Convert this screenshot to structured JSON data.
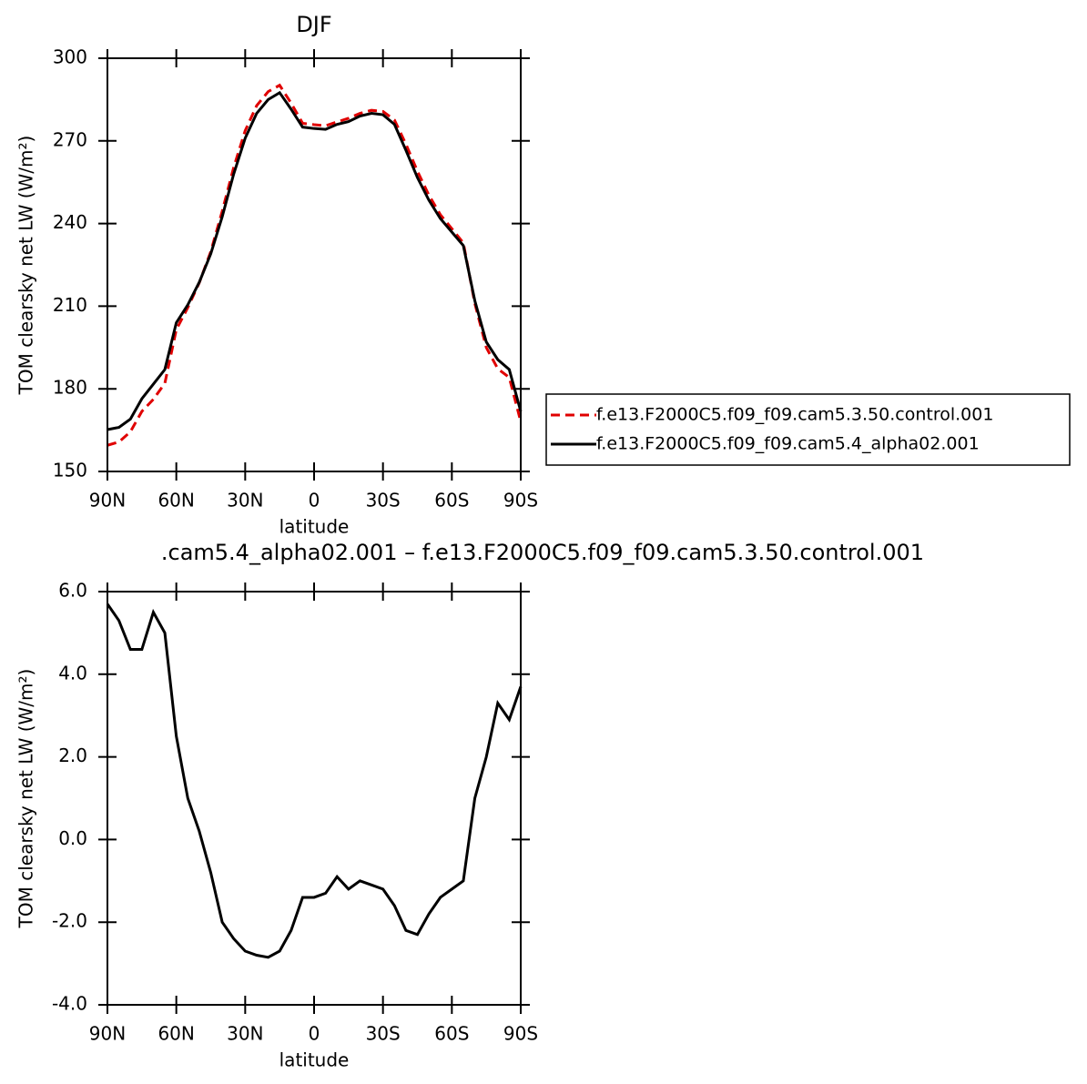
{
  "chart_data": [
    {
      "type": "line",
      "title": "DJF",
      "xlabel": "latitude",
      "ylabel": "TOM clearsky net LW (W/m²)",
      "x": [
        90,
        85,
        80,
        75,
        70,
        65,
        60,
        55,
        50,
        45,
        40,
        35,
        30,
        25,
        20,
        15,
        10,
        5,
        0,
        -5,
        -10,
        -15,
        -20,
        -25,
        -30,
        -35,
        -40,
        -45,
        -50,
        -55,
        -60,
        -65,
        -70,
        -75,
        -80,
        -85,
        -90
      ],
      "xlim": [
        90,
        -90
      ],
      "xticks": [
        {
          "value": 90,
          "label": "90N"
        },
        {
          "value": 60,
          "label": "60N"
        },
        {
          "value": 30,
          "label": "30N"
        },
        0,
        {
          "value": -30,
          "label": "30S"
        },
        {
          "value": -60,
          "label": "60S"
        },
        {
          "value": -90,
          "label": "90S"
        }
      ],
      "ylim": [
        150,
        300
      ],
      "yticks": [
        150,
        180,
        210,
        240,
        270,
        300
      ],
      "legend": "right",
      "series": [
        {
          "name": "f.e13.F2000C5.f09_f09.cam5.3.50.control.001",
          "color": "#e00000",
          "linestyle": "dashed",
          "values": [
            159.5,
            160.7,
            164.4,
            171.8,
            176.2,
            182,
            201.5,
            209.5,
            218.5,
            229.8,
            244.5,
            260.4,
            273.7,
            282.8,
            287.9,
            290.2,
            283.7,
            276.4,
            275.9,
            275.5,
            276.9,
            278.2,
            280,
            281.1,
            280.7,
            277.6,
            268.8,
            259,
            250.3,
            243.2,
            238.1,
            233,
            211,
            195,
            187.3,
            184.1,
            168.1
          ]
        },
        {
          "name": "f.e13.F2000C5.f09_f09.cam5.4_alpha02.001",
          "color": "#000000",
          "linestyle": "solid",
          "values": [
            165.2,
            166,
            169,
            176.4,
            181.7,
            187,
            204,
            210.5,
            218.7,
            229,
            242.5,
            258,
            271,
            280,
            285,
            287.5,
            281.5,
            275,
            274.5,
            274.2,
            276,
            277,
            279,
            280,
            279.5,
            276,
            266.6,
            256.7,
            248.5,
            241.8,
            236.9,
            232,
            212,
            197,
            190.6,
            187,
            171.8
          ]
        }
      ]
    },
    {
      "type": "line",
      "title": ".cam5.4_alpha02.001 – f.e13.F2000C5.f09_f09.cam5.3.50.control.001",
      "xlabel": "latitude",
      "ylabel": "TOM clearsky net LW (W/m²)",
      "x": [
        90,
        85,
        80,
        75,
        70,
        65,
        60,
        55,
        50,
        45,
        40,
        35,
        30,
        25,
        20,
        15,
        10,
        5,
        0,
        -5,
        -10,
        -15,
        -20,
        -25,
        -30,
        -35,
        -40,
        -45,
        -50,
        -55,
        -60,
        -65,
        -70,
        -75,
        -80,
        -85,
        -90
      ],
      "xlim": [
        90,
        -90
      ],
      "xticks": [
        {
          "value": 90,
          "label": "90N"
        },
        {
          "value": 60,
          "label": "60N"
        },
        {
          "value": 30,
          "label": "30N"
        },
        0,
        {
          "value": -30,
          "label": "30S"
        },
        {
          "value": -60,
          "label": "60S"
        },
        {
          "value": -90,
          "label": "90S"
        }
      ],
      "ylim": [
        -4,
        6
      ],
      "yticks": [
        {
          "value": -4,
          "label": "-4.0"
        },
        {
          "value": -2,
          "label": "-2.0"
        },
        {
          "value": 0,
          "label": "0.0"
        },
        {
          "value": 2,
          "label": "2.0"
        },
        {
          "value": 4,
          "label": "4.0"
        },
        {
          "value": 6,
          "label": "6.0"
        }
      ],
      "series": [
        {
          "color": "#000000",
          "linestyle": "solid",
          "values": [
            5.7,
            5.3,
            4.6,
            4.6,
            5.5,
            5.0,
            2.5,
            1.0,
            0.2,
            -0.8,
            -2.0,
            -2.4,
            -2.7,
            -2.8,
            -2.85,
            -2.7,
            -2.2,
            -1.4,
            -1.4,
            -1.3,
            -0.9,
            -1.2,
            -1.0,
            -1.1,
            -1.2,
            -1.6,
            -2.2,
            -2.3,
            -1.8,
            -1.4,
            -1.2,
            -1.0,
            1.0,
            2.0,
            3.3,
            2.9,
            3.7
          ]
        }
      ]
    }
  ]
}
